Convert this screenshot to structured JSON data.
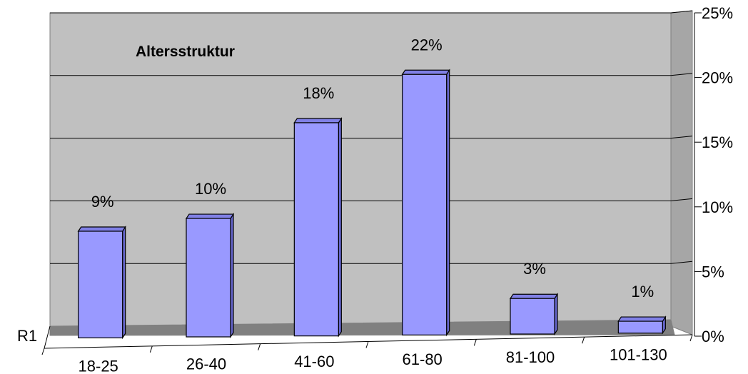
{
  "chart_data": {
    "type": "bar",
    "title": "Altersstruktur",
    "series_label": "R1",
    "categories": [
      "18-25",
      "26-40",
      "41-60",
      "61-80",
      "81-100",
      "101-130"
    ],
    "values": [
      9,
      10,
      18,
      22,
      3,
      1
    ],
    "value_labels": [
      "9%",
      "10%",
      "18%",
      "22%",
      "3%",
      "1%"
    ],
    "ylim": [
      0,
      25
    ],
    "yticks": [
      0,
      5,
      10,
      15,
      20,
      25
    ],
    "ytick_labels": [
      "0%",
      "5%",
      "10%",
      "15%",
      "20%",
      "25%"
    ],
    "grid": true,
    "three_d": true,
    "colors": {
      "bar_front": "#9999FF",
      "bar_top": "#8080E6",
      "bar_side": "#6666CC",
      "wall": "#C0C0C0",
      "wall_side": "#A6A6A6",
      "floor": "#808080",
      "gridline": "#000000"
    }
  }
}
